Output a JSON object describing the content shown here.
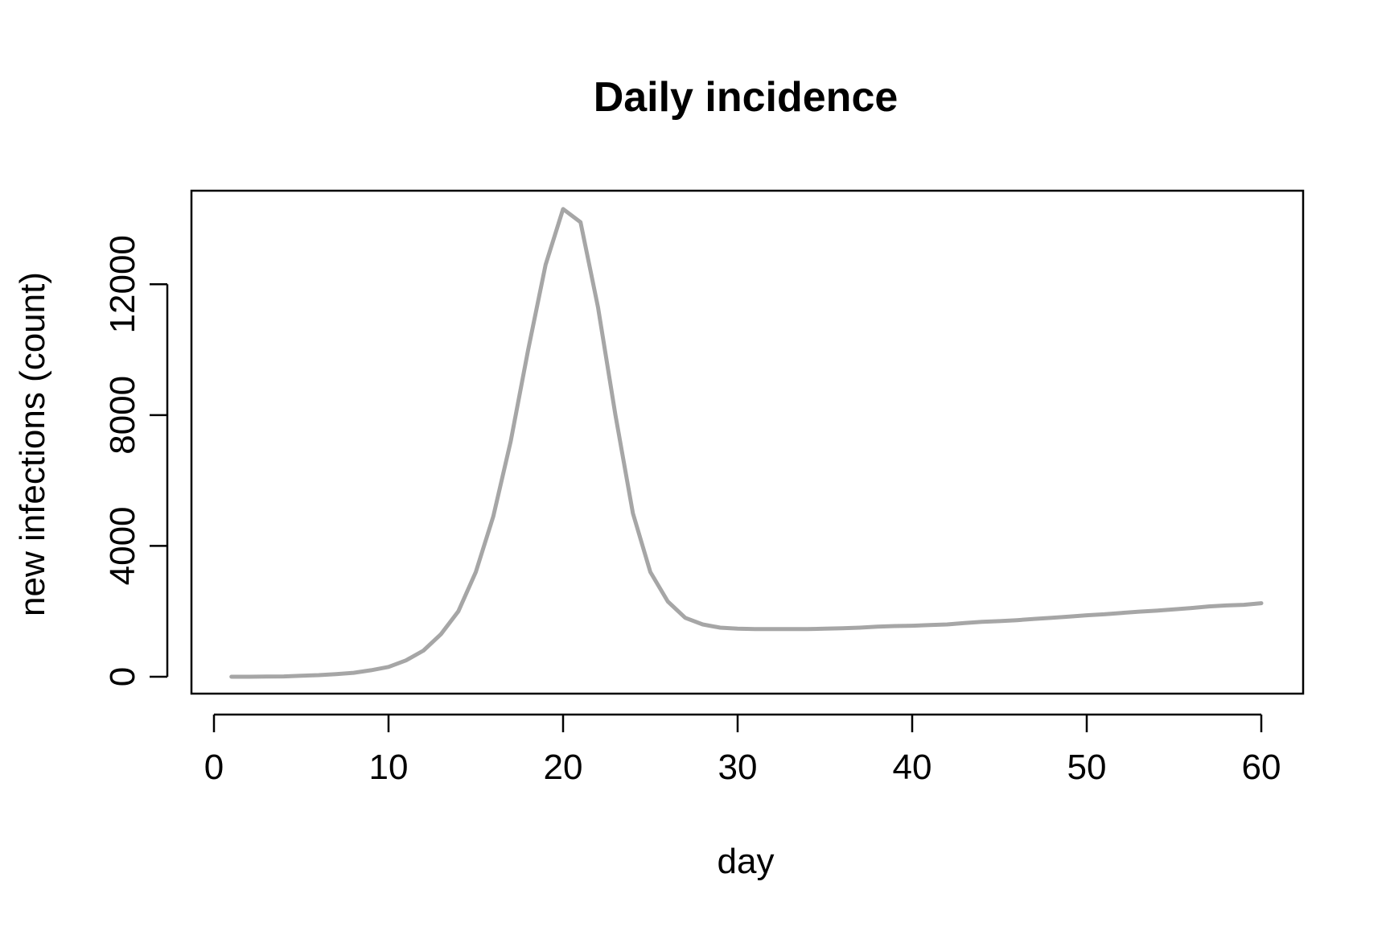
{
  "chart_data": {
    "type": "line",
    "title": "Daily incidence",
    "xlabel": "day",
    "ylabel": "new infections (count)",
    "xlim": [
      0,
      60
    ],
    "ylim": [
      0,
      14000
    ],
    "xticks": [
      0,
      10,
      20,
      30,
      40,
      50,
      60
    ],
    "yticks": [
      0,
      4000,
      8000,
      12000
    ],
    "grid": false,
    "line_color": "#a6a6a6",
    "series": [
      {
        "x": [
          1,
          2,
          3,
          4,
          5,
          6,
          7,
          8,
          9,
          10,
          11,
          12,
          13,
          14,
          15,
          16,
          17,
          18,
          19,
          20,
          21,
          22,
          23,
          24,
          25,
          26,
          27,
          28,
          29,
          30,
          31,
          32,
          33,
          34,
          35,
          36,
          37,
          38,
          39,
          40,
          41,
          42,
          43,
          44,
          45,
          46,
          47,
          48,
          49,
          50,
          51,
          52,
          53,
          54,
          55,
          56,
          57,
          58,
          59,
          60
        ],
        "values": [
          0,
          0,
          5,
          10,
          30,
          50,
          80,
          120,
          200,
          300,
          500,
          800,
          1300,
          2000,
          3200,
          4900,
          7200,
          10000,
          12600,
          14300,
          13900,
          11300,
          8000,
          5000,
          3200,
          2300,
          1800,
          1600,
          1500,
          1470,
          1460,
          1460,
          1460,
          1460,
          1470,
          1480,
          1500,
          1530,
          1550,
          1560,
          1580,
          1600,
          1640,
          1680,
          1700,
          1730,
          1770,
          1800,
          1840,
          1880,
          1910,
          1950,
          1990,
          2020,
          2060,
          2100,
          2150,
          2180,
          2200,
          2250
        ]
      }
    ]
  }
}
